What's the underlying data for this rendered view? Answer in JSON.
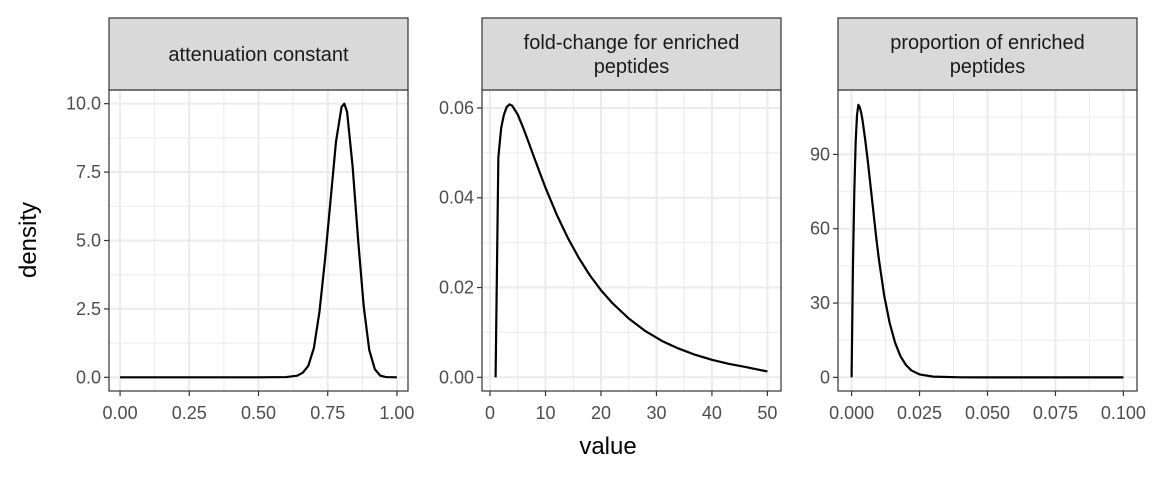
{
  "chart_data": {
    "type": "line",
    "xlabel": "value",
    "ylabel": "density",
    "grid": true,
    "colors": {
      "line": "#000000",
      "strip_fill": "#d9d9d9",
      "border": "#333333",
      "grid_major": "#ebebeb",
      "tick_label": "#4d4d4d"
    },
    "panels": [
      {
        "title": "attenuation constant",
        "title_lines": [
          "attenuation constant"
        ],
        "xlim": [
          -0.04,
          1.04
        ],
        "ylim": [
          -0.5,
          10.5
        ],
        "xticks": [
          0,
          0.25,
          0.5,
          0.75,
          1
        ],
        "xtick_labels": [
          "0.00",
          "0.25",
          "0.50",
          "0.75",
          "1.00"
        ],
        "yticks": [
          0,
          2.5,
          5,
          7.5,
          10
        ],
        "ytick_labels": [
          "0.0",
          "2.5",
          "5.0",
          "7.5",
          "10.0"
        ],
        "series": [
          {
            "x": [
              0.0,
              0.1,
              0.2,
              0.3,
              0.4,
              0.5,
              0.6,
              0.64,
              0.66,
              0.68,
              0.7,
              0.72,
              0.74,
              0.76,
              0.78,
              0.8,
              0.81,
              0.82,
              0.84,
              0.86,
              0.88,
              0.9,
              0.92,
              0.94,
              0.96,
              1.0
            ],
            "y": [
              0,
              0,
              0,
              0,
              0,
              0,
              0.01,
              0.06,
              0.17,
              0.42,
              1.07,
              2.38,
              4.27,
              6.44,
              8.62,
              9.88,
              10.0,
              9.7,
              7.7,
              5.0,
              2.6,
              1.0,
              0.3,
              0.06,
              0.01,
              0
            ]
          }
        ]
      },
      {
        "title": "fold-change for enriched peptides",
        "title_lines": [
          "fold-change for enriched",
          "peptides"
        ],
        "xlim": [
          -1.45,
          52.45
        ],
        "ylim": [
          -0.00305,
          0.064
        ],
        "xticks": [
          0,
          10,
          20,
          30,
          40,
          50
        ],
        "xtick_labels": [
          "0",
          "10",
          "20",
          "30",
          "40",
          "50"
        ],
        "yticks": [
          0,
          0.02,
          0.04,
          0.06
        ],
        "ytick_labels": [
          "0.00",
          "0.02",
          "0.04",
          "0.06"
        ],
        "series": [
          {
            "x": [
              1.0,
              1.5,
              2.0,
              2.5,
              3.0,
              3.5,
              4.0,
              5.0,
              6.0,
              7.0,
              8.0,
              10.0,
              12.0,
              14.0,
              16.0,
              18.0,
              20.0,
              22.0,
              25.0,
              28.0,
              31.0,
              34.0,
              37.0,
              40.0,
              43.0,
              46.0,
              50.0
            ],
            "y": [
              0.0,
              0.049,
              0.0555,
              0.0585,
              0.0602,
              0.0608,
              0.0605,
              0.0585,
              0.0555,
              0.0522,
              0.0488,
              0.0422,
              0.0363,
              0.0311,
              0.0266,
              0.0227,
              0.0194,
              0.0166,
              0.0131,
              0.0103,
              0.0081,
              0.0064,
              0.005,
              0.0039,
              0.003,
              0.0023,
              0.0013
            ]
          }
        ]
      },
      {
        "title": "proportion of enriched peptides",
        "title_lines": [
          "proportion of enriched",
          "peptides"
        ],
        "xlim": [
          -0.005,
          0.105
        ],
        "ylim": [
          -5.5,
          116
        ],
        "xticks": [
          0,
          0.025,
          0.05,
          0.075,
          0.1
        ],
        "xtick_labels": [
          "0.000",
          "0.025",
          "0.050",
          "0.075",
          "0.100"
        ],
        "yticks": [
          0,
          30,
          60,
          90
        ],
        "ytick_labels": [
          "0",
          "30",
          "60",
          "90"
        ],
        "series": [
          {
            "x": [
              0.0,
              0.0005,
              0.001,
              0.0015,
              0.002,
              0.0025,
              0.003,
              0.0035,
              0.004,
              0.005,
              0.006,
              0.007,
              0.008,
              0.009,
              0.01,
              0.012,
              0.014,
              0.016,
              0.018,
              0.02,
              0.022,
              0.025,
              0.03,
              0.04,
              0.05,
              0.06,
              0.08,
              0.1
            ],
            "y": [
              0,
              45,
              75,
              95,
              106,
              110,
              109,
              107,
              104,
              96,
              87,
              77,
              67,
              57,
              48,
              33,
              22,
              14,
              8.5,
              5.0,
              2.8,
              1.2,
              0.3,
              0.02,
              0,
              0,
              0,
              0
            ]
          }
        ]
      }
    ]
  }
}
